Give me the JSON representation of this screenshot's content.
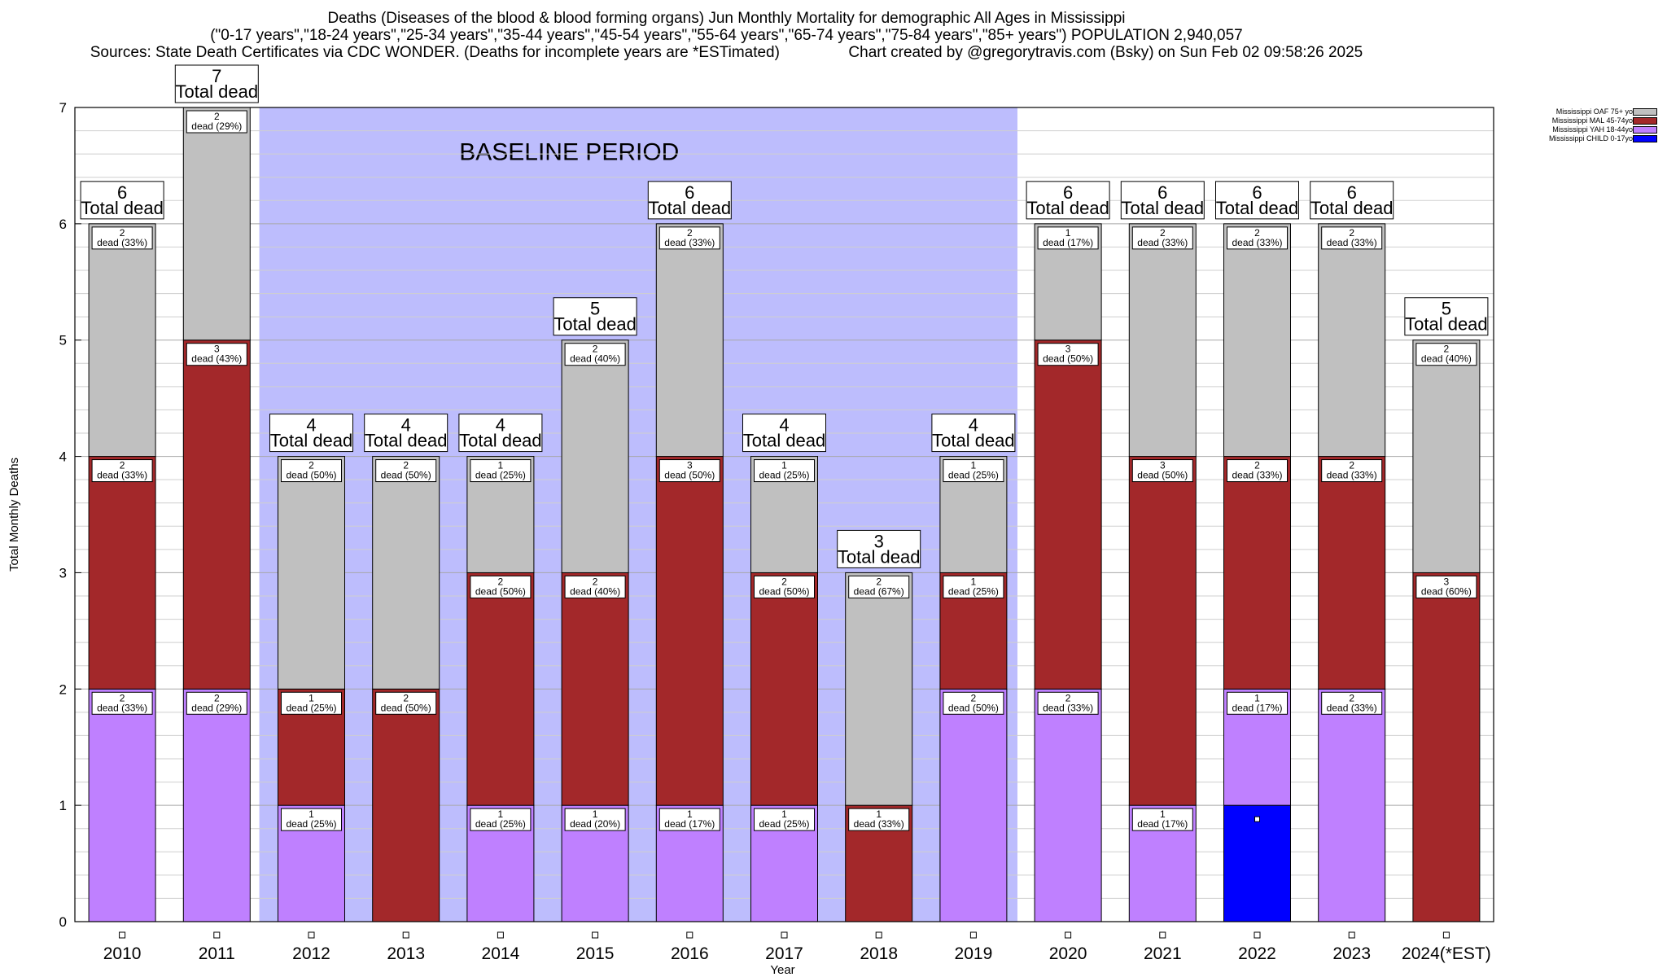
{
  "header": {
    "line1": "Deaths (Diseases of the blood & blood forming organs) Jun Monthly Mortality for demographic All Ages in Mississippi",
    "line2": "(\"0-17 years\",\"18-24 years\",\"25-34 years\",\"35-44 years\",\"45-54 years\",\"55-64 years\",\"65-74 years\",\"75-84 years\",\"85+ years\") POPULATION 2,940,057",
    "line3": "Sources: State Death Certificates via CDC WONDER. (Deaths for incomplete years are *ESTimated)                Chart created by @gregorytravis.com (Bsky) on Sun Feb 02 09:58:26 2025"
  },
  "chart_data": {
    "type": "bar",
    "stacked": true,
    "xlabel": "Year",
    "ylabel": "Total Monthly Deaths",
    "ylim": [
      0,
      7
    ],
    "yticks": [
      0,
      1,
      2,
      3,
      4,
      5,
      6,
      7
    ],
    "categories": [
      "2010",
      "2011",
      "2012",
      "2013",
      "2014",
      "2015",
      "2016",
      "2017",
      "2018",
      "2019",
      "2020",
      "2021",
      "2022",
      "2023",
      "2024(*EST)"
    ],
    "baseline": {
      "label": "BASELINE PERIOD",
      "from": "2012",
      "to": "2019",
      "color": "#bdbdfd"
    },
    "total_suffix": "Total dead",
    "series": [
      {
        "name": "Mississippi CHILD 0-17yo",
        "color": "#0000ff",
        "values": [
          0,
          0,
          0,
          0,
          0,
          0,
          0,
          0,
          0,
          0,
          0,
          0,
          1,
          0,
          0
        ],
        "labels": [
          "",
          "",
          "",
          "",
          "",
          "",
          "",
          "",
          "",
          "",
          "",
          "",
          "",
          "",
          ""
        ]
      },
      {
        "name": "Mississippi YAH 18-44yo",
        "color": "#bf80ff",
        "values": [
          2,
          2,
          1,
          0,
          1,
          1,
          1,
          1,
          0,
          2,
          2,
          1,
          1,
          2,
          0
        ],
        "labels": [
          "dead (33%)",
          "dead (29%)",
          "dead (25%)",
          "",
          "dead (25%)",
          "dead (20%)",
          "dead (17%)",
          "dead (25%)",
          "",
          "dead (50%)",
          "dead (33%)",
          "dead (17%)",
          "dead (17%)",
          "dead (33%)",
          ""
        ]
      },
      {
        "name": "Mississippi MAL 45-74yo",
        "color": "#a3282a",
        "values": [
          2,
          3,
          1,
          2,
          2,
          2,
          3,
          2,
          1,
          1,
          3,
          3,
          2,
          2,
          3
        ],
        "labels": [
          "dead (33%)",
          "dead (43%)",
          "dead (25%)",
          "dead (50%)",
          "dead (50%)",
          "dead (40%)",
          "dead (50%)",
          "dead (50%)",
          "dead (33%)",
          "dead (25%)",
          "dead (50%)",
          "dead (50%)",
          "dead (33%)",
          "dead (33%)",
          "dead (60%)"
        ]
      },
      {
        "name": "Mississippi OAF 75+ yo",
        "color": "#c0c0c0",
        "values": [
          2,
          2,
          2,
          2,
          1,
          2,
          2,
          1,
          2,
          1,
          1,
          2,
          2,
          2,
          2
        ],
        "labels": [
          "dead (33%)",
          "dead (29%)",
          "dead (50%)",
          "dead (50%)",
          "dead (25%)",
          "dead (40%)",
          "dead (33%)",
          "dead (25%)",
          "dead (67%)",
          "dead (25%)",
          "dead (17%)",
          "dead (33%)",
          "dead (33%)",
          "dead (33%)",
          "dead (40%)"
        ]
      }
    ],
    "totals": [
      6,
      7,
      4,
      4,
      4,
      5,
      6,
      4,
      3,
      4,
      6,
      6,
      6,
      6,
      5
    ],
    "legend": {
      "placement": "top-right",
      "entries": [
        {
          "label": "Mississippi OAF 75+ yo",
          "color": "#c0c0c0"
        },
        {
          "label": "Mississippi MAL 45-74yo",
          "color": "#a3282a"
        },
        {
          "label": "Mississippi YAH 18-44yo",
          "color": "#bf80ff"
        },
        {
          "label": "Mississippi CHILD 0-17yo",
          "color": "#0000ff"
        }
      ]
    }
  }
}
